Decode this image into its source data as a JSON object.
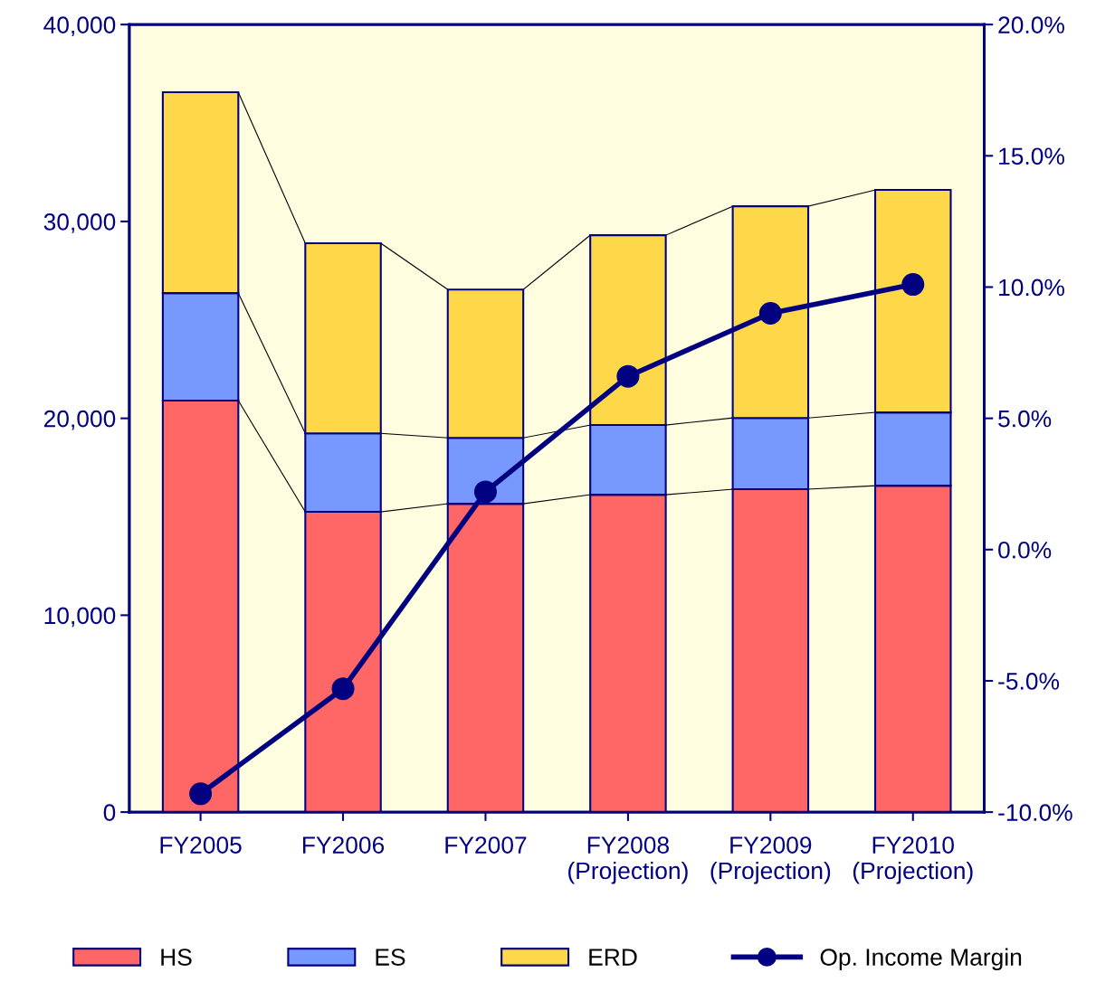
{
  "chart_data": {
    "type": "bar",
    "stacked": true,
    "categories": [
      "FY2005",
      "FY2006",
      "FY2007",
      "FY2008\n(Projection)",
      "FY2009\n(Projection)",
      "FY2010\n(Projection)"
    ],
    "series": [
      {
        "name": "HS",
        "color": "#ff6666",
        "values": [
          20900,
          15250,
          15660,
          16120,
          16400,
          16580
        ]
      },
      {
        "name": "ES",
        "color": "#7799ff",
        "values": [
          5460,
          3990,
          3350,
          3540,
          3620,
          3720
        ]
      },
      {
        "name": "ERD",
        "color": "#ffd84a",
        "values": [
          10200,
          9650,
          7530,
          9640,
          10750,
          11300
        ]
      },
      {
        "name": "Op. Income Margin",
        "type": "line",
        "axis": "y2",
        "color": "#000080",
        "marker": "circle",
        "values": [
          -9.3,
          -5.3,
          2.2,
          6.6,
          9.0,
          10.1
        ]
      }
    ],
    "ylim": [
      0,
      40000
    ],
    "yticks": [
      {
        "value": 0,
        "label": "0"
      },
      {
        "value": 10000,
        "label": "10,000"
      },
      {
        "value": 20000,
        "label": "20,000"
      },
      {
        "value": 30000,
        "label": "30,000"
      },
      {
        "value": 40000,
        "label": "40,000"
      }
    ],
    "y2lim": [
      -10,
      20
    ],
    "y2ticks": [
      {
        "value": -10,
        "label": "-10.0%"
      },
      {
        "value": -5,
        "label": "-5.0%"
      },
      {
        "value": 0,
        "label": "0.0%"
      },
      {
        "value": 5,
        "label": "5.0%"
      },
      {
        "value": 10,
        "label": "10.0%"
      },
      {
        "value": 15,
        "label": "15.0%"
      },
      {
        "value": 20,
        "label": "20.0%"
      }
    ],
    "grid": false,
    "legend": "bottom"
  }
}
